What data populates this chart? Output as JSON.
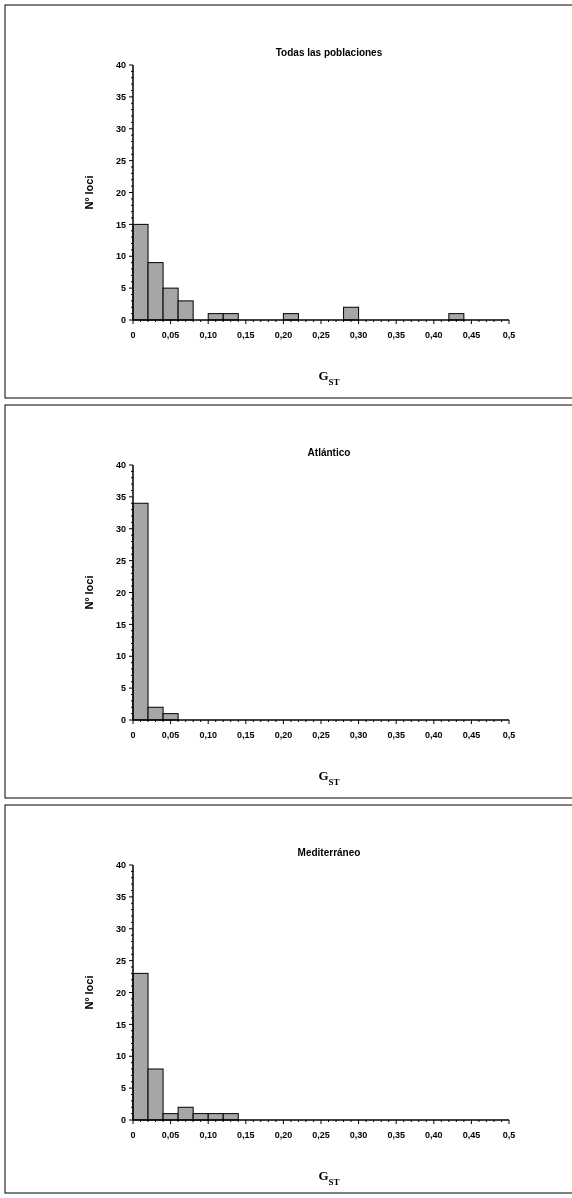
{
  "chart_data": [
    {
      "type": "histogram",
      "title": "Todas las poblaciones",
      "xlabel": "G$_{ST}$",
      "ylabel": "Nº loci",
      "color": "#a6a6a6",
      "bins": [
        0,
        0.02,
        0.04,
        0.06,
        0.08,
        0.1,
        0.12,
        0.14,
        0.16,
        0.18,
        0.2,
        0.22,
        0.24,
        0.26,
        0.28,
        0.3,
        0.32,
        0.34,
        0.36,
        0.38,
        0.4,
        0.42,
        0.44,
        0.46,
        0.48,
        0.5
      ],
      "values": [
        15,
        9,
        5,
        3,
        0,
        1,
        1,
        0,
        0,
        0,
        1,
        0,
        0,
        0,
        2,
        0,
        0,
        0,
        0,
        0,
        0,
        1,
        0,
        0,
        0
      ],
      "xlim": [
        0,
        0.5
      ],
      "xticks": [
        {
          "value": 0,
          "label": "0"
        },
        {
          "value": 0.05,
          "label": "0,05"
        },
        {
          "value": 0.1,
          "label": "0,10"
        },
        {
          "value": 0.15,
          "label": "0,15"
        },
        {
          "value": 0.2,
          "label": "0,20"
        },
        {
          "value": 0.25,
          "label": "0,25"
        },
        {
          "value": 0.3,
          "label": "0,30"
        },
        {
          "value": 0.35,
          "label": "0,35"
        },
        {
          "value": 0.4,
          "label": "0,40"
        },
        {
          "value": 0.45,
          "label": "0,45"
        },
        {
          "value": 0.5,
          "label": "0,5"
        }
      ],
      "ylim": [
        0,
        40
      ],
      "yticks": [
        0,
        5,
        10,
        15,
        20,
        25,
        30,
        35,
        40
      ]
    },
    {
      "type": "histogram",
      "title": "Atlántico",
      "xlabel": "G$_{ST}$",
      "ylabel": "Nº loci",
      "color": "#a6a6a6",
      "bins": [
        0,
        0.02,
        0.04,
        0.06,
        0.08,
        0.1,
        0.12,
        0.14,
        0.16,
        0.18,
        0.2,
        0.22,
        0.24,
        0.26,
        0.28,
        0.3,
        0.32,
        0.34,
        0.36,
        0.38,
        0.4,
        0.42,
        0.44,
        0.46,
        0.48,
        0.5
      ],
      "values": [
        34,
        2,
        1,
        0,
        0,
        0,
        0,
        0,
        0,
        0,
        0,
        0,
        0,
        0,
        0,
        0,
        0,
        0,
        0,
        0,
        0,
        0,
        0,
        0,
        0
      ],
      "xlim": [
        0,
        0.5
      ],
      "xticks": [
        {
          "value": 0,
          "label": "0"
        },
        {
          "value": 0.05,
          "label": "0,05"
        },
        {
          "value": 0.1,
          "label": "0,10"
        },
        {
          "value": 0.15,
          "label": "0,15"
        },
        {
          "value": 0.2,
          "label": "0,20"
        },
        {
          "value": 0.25,
          "label": "0,25"
        },
        {
          "value": 0.3,
          "label": "0,30"
        },
        {
          "value": 0.35,
          "label": "0,35"
        },
        {
          "value": 0.4,
          "label": "0,40"
        },
        {
          "value": 0.45,
          "label": "0,45"
        },
        {
          "value": 0.5,
          "label": "0,5"
        }
      ],
      "ylim": [
        0,
        40
      ],
      "yticks": [
        0,
        5,
        10,
        15,
        20,
        25,
        30,
        35,
        40
      ]
    },
    {
      "type": "histogram",
      "title": "Mediterráneo",
      "xlabel": "G$_{ST}$",
      "ylabel": "Nº loci",
      "color": "#a6a6a6",
      "bins": [
        0,
        0.02,
        0.04,
        0.06,
        0.08,
        0.1,
        0.12,
        0.14,
        0.16,
        0.18,
        0.2,
        0.22,
        0.24,
        0.26,
        0.28,
        0.3,
        0.32,
        0.34,
        0.36,
        0.38,
        0.4,
        0.42,
        0.44,
        0.46,
        0.48,
        0.5
      ],
      "values": [
        23,
        8,
        1,
        2,
        1,
        1,
        1,
        0,
        0,
        0,
        0,
        0,
        0,
        0,
        0,
        0,
        0,
        0,
        0,
        0,
        0,
        0,
        0,
        0,
        0
      ],
      "xlim": [
        0,
        0.5
      ],
      "xticks": [
        {
          "value": 0,
          "label": "0"
        },
        {
          "value": 0.05,
          "label": "0,05"
        },
        {
          "value": 0.1,
          "label": "0,10"
        },
        {
          "value": 0.15,
          "label": "0,15"
        },
        {
          "value": 0.2,
          "label": "0,20"
        },
        {
          "value": 0.25,
          "label": "0,25"
        },
        {
          "value": 0.3,
          "label": "0,30"
        },
        {
          "value": 0.35,
          "label": "0,35"
        },
        {
          "value": 0.4,
          "label": "0,40"
        },
        {
          "value": 0.45,
          "label": "0,45"
        },
        {
          "value": 0.5,
          "label": "0,5"
        }
      ],
      "ylim": [
        0,
        40
      ],
      "yticks": [
        0,
        5,
        10,
        15,
        20,
        25,
        30,
        35,
        40
      ]
    }
  ]
}
